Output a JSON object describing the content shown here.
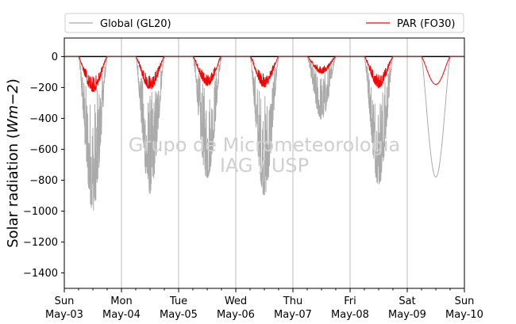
{
  "chart_data": {
    "type": "line",
    "ylabel_base": "Solar radiation (",
    "ylabel_unit": "Wm−2",
    "ylabel_end": ")",
    "ylim": [
      -1500,
      120
    ],
    "yticks": [
      0,
      -200,
      -400,
      -600,
      -800,
      -1000,
      -1200,
      -1400
    ],
    "xlim_days": [
      0,
      7
    ],
    "xtick_days": [
      "Sun",
      "Mon",
      "Tue",
      "Wed",
      "Thu",
      "Fri",
      "Sat",
      "Sun"
    ],
    "xtick_dates": [
      "May-03",
      "May-04",
      "May-05",
      "May-06",
      "May-07",
      "May-08",
      "May-09",
      "May-10"
    ],
    "grid": "vertical",
    "legend": {
      "placement": "top-outside",
      "entries": [
        {
          "label": "Global (GL20)",
          "color": "#aaaaaa"
        },
        {
          "label": "PAR (FO30)",
          "color": "#ff0000"
        }
      ]
    },
    "watermark": [
      "Grupo de Micrometeorologia",
      "IAG / USP"
    ],
    "series": [
      {
        "name": "Global (GL20)",
        "color": "#aaaaaa",
        "daily_min": [
          -1000,
          -890,
          -790,
          -900,
          -410,
          -830,
          -780
        ],
        "daily_noise": [
          true,
          true,
          true,
          true,
          true,
          true,
          false
        ]
      },
      {
        "name": "PAR (FO30)",
        "color": "#ff0000",
        "daily_min": [
          -230,
          -215,
          -190,
          -200,
          -110,
          -200,
          -180
        ],
        "daily_noise": [
          true,
          true,
          true,
          true,
          true,
          true,
          false
        ]
      }
    ]
  }
}
